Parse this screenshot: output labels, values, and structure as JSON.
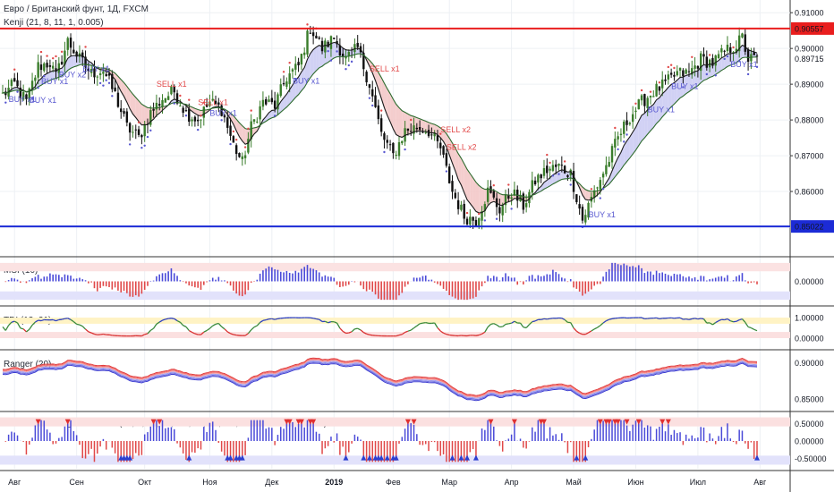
{
  "chart_data": {
    "type": "candlestick-dashboard",
    "title": "Евро / Британский фунт, 1Д, FXCM",
    "x_axis": {
      "labels": [
        "Авг",
        "Сен",
        "Окт",
        "Ноя",
        "Дек",
        "2019",
        "Фев",
        "Мар",
        "Апр",
        "Май",
        "Июн",
        "Июл",
        "Авг"
      ],
      "label_index": [
        4,
        25,
        48,
        70,
        91,
        112,
        132,
        151,
        172,
        193,
        214,
        235,
        256
      ]
    },
    "main": {
      "indicator_label": "Kenji (21, 8, 11, 1, 0.005)",
      "ylim": [
        0.843,
        0.9128
      ],
      "ticks": [
        0.85,
        0.86,
        0.87,
        0.88,
        0.89,
        0.9,
        0.91
      ],
      "tick_labels": [
        "",
        "0.86000",
        "0.87000",
        "0.88000",
        "0.89000",
        "0.90000",
        "0.91000"
      ],
      "resistance": {
        "value": 0.90557,
        "label": "0.90557",
        "color": "#e91e1e"
      },
      "support": {
        "value": 0.85022,
        "label": "0.85022",
        "color": "#1c2bd6"
      },
      "last_price": {
        "value": 0.89715,
        "label": "0.89715"
      },
      "close_anchors": [
        [
          0,
          0.887
        ],
        [
          4,
          0.89
        ],
        [
          8,
          0.885
        ],
        [
          12,
          0.895
        ],
        [
          16,
          0.896
        ],
        [
          18,
          0.892
        ],
        [
          22,
          0.902
        ],
        [
          26,
          0.897
        ],
        [
          30,
          0.893
        ],
        [
          34,
          0.894
        ],
        [
          38,
          0.887
        ],
        [
          42,
          0.878
        ],
        [
          46,
          0.875
        ],
        [
          50,
          0.882
        ],
        [
          54,
          0.886
        ],
        [
          58,
          0.888
        ],
        [
          62,
          0.882
        ],
        [
          66,
          0.88
        ],
        [
          70,
          0.885
        ],
        [
          74,
          0.883
        ],
        [
          78,
          0.873
        ],
        [
          81,
          0.868
        ],
        [
          84,
          0.878
        ],
        [
          88,
          0.885
        ],
        [
          92,
          0.884
        ],
        [
          96,
          0.892
        ],
        [
          100,
          0.895
        ],
        [
          104,
          0.906
        ],
        [
          108,
          0.9
        ],
        [
          112,
          0.903
        ],
        [
          116,
          0.897
        ],
        [
          120,
          0.9
        ],
        [
          124,
          0.89
        ],
        [
          128,
          0.876
        ],
        [
          132,
          0.87
        ],
        [
          136,
          0.877
        ],
        [
          140,
          0.878
        ],
        [
          144,
          0.877
        ],
        [
          148,
          0.872
        ],
        [
          152,
          0.86
        ],
        [
          156,
          0.853
        ],
        [
          160,
          0.852
        ],
        [
          164,
          0.86
        ],
        [
          168,
          0.855
        ],
        [
          172,
          0.86
        ],
        [
          176,
          0.856
        ],
        [
          180,
          0.863
        ],
        [
          184,
          0.866
        ],
        [
          188,
          0.867
        ],
        [
          192,
          0.865
        ],
        [
          196,
          0.852
        ],
        [
          200,
          0.86
        ],
        [
          204,
          0.867
        ],
        [
          208,
          0.875
        ],
        [
          212,
          0.881
        ],
        [
          216,
          0.885
        ],
        [
          220,
          0.888
        ],
        [
          224,
          0.89
        ],
        [
          228,
          0.893
        ],
        [
          232,
          0.893
        ],
        [
          236,
          0.897
        ],
        [
          240,
          0.896
        ],
        [
          244,
          0.899
        ],
        [
          248,
          0.901
        ],
        [
          250,
          0.903
        ],
        [
          252,
          0.897
        ]
      ],
      "signals": [
        {
          "i": 2,
          "text": "BUY x1",
          "side": "below"
        },
        {
          "i": 9,
          "text": "BUY x1",
          "side": "below"
        },
        {
          "i": 13,
          "text": "BUY x1",
          "side": "below"
        },
        {
          "i": 19,
          "text": "BUY x2",
          "side": "below"
        },
        {
          "i": 27,
          "text": "BUY x1",
          "side": "below"
        },
        {
          "i": 52,
          "text": "SELL x1",
          "side": "above"
        },
        {
          "i": 66,
          "text": "SELL x1",
          "side": "above"
        },
        {
          "i": 70,
          "text": "BUY x1",
          "side": "below"
        },
        {
          "i": 98,
          "text": "BUY x1",
          "side": "below"
        },
        {
          "i": 124,
          "text": "SELL x1",
          "side": "above"
        },
        {
          "i": 148,
          "text": "SELL x2",
          "side": "above"
        },
        {
          "i": 150,
          "text": "SELL x2",
          "side": "above"
        },
        {
          "i": 198,
          "text": "BUY x1",
          "side": "below"
        },
        {
          "i": 218,
          "text": "BUY x1",
          "side": "below"
        },
        {
          "i": 226,
          "text": "BUY x1",
          "side": "below"
        },
        {
          "i": 246,
          "text": "BUY x1",
          "side": "below"
        }
      ]
    },
    "msi": {
      "label": "MSI (10)",
      "ylim": [
        -0.012,
        0.012
      ],
      "tick_labels": [
        "0.00000"
      ]
    },
    "tdi": {
      "label": "TDI (13, 21)",
      "ylim": [
        -0.35,
        1.35
      ],
      "tick_labels": [
        "1.00000",
        "0.00000"
      ]
    },
    "ranger": {
      "label": "Ranger (20)",
      "ylim": [
        0.839,
        0.912
      ],
      "tick_labels": [
        "0.90000",
        "0.85000"
      ]
    },
    "mega": {
      "label": "Unistrada24 Mega Oscillator (13, 8, 21, 11, 0.4, 70, 30, 0.4, -0.4, 0.0001, -0.0001)",
      "ylim": [
        -0.72,
        0.72
      ],
      "tick_labels": [
        "0.50000",
        "0.00000",
        "-0.50000"
      ]
    },
    "colors": {
      "bull": "#3a7d2b",
      "bear": "#101010",
      "ma_fast": "#1a1a1a",
      "ma_slow": "#2e6b2e",
      "fill_up": "#c9c9f2",
      "fill_down": "#f2c4c4",
      "pos": "#4a4ad8",
      "neg": "#e04848",
      "buy_text": "#5858d0",
      "sell_text": "#e24a4a"
    }
  }
}
